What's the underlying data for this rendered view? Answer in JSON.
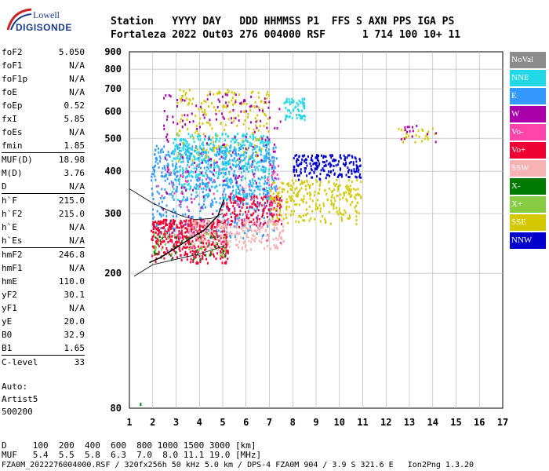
{
  "logo": {
    "line1": "Lowell",
    "line2": "DIGISONDE"
  },
  "header": {
    "row1": "Station   YYYY DAY   DDD HHMMSS P1  FFS S AXN PPS IGA PS",
    "row2": "Fortaleza 2022 Out03 276 004000 RSF      1 714 100 10+ 11"
  },
  "params": [
    {
      "name": "foF2",
      "value": "5.050",
      "sep": false
    },
    {
      "name": "foF1",
      "value": "N/A",
      "sep": false
    },
    {
      "name": "foF1p",
      "value": "N/A",
      "sep": false
    },
    {
      "name": "foE",
      "value": "N/A",
      "sep": false
    },
    {
      "name": "foEp",
      "value": "0.52",
      "sep": false
    },
    {
      "name": "fxI",
      "value": "5.85",
      "sep": false
    },
    {
      "name": "foEs",
      "value": "N/A",
      "sep": false
    },
    {
      "name": "fmin",
      "value": "1.85",
      "sep": false
    },
    {
      "name": "MUF(D)",
      "value": "18.98",
      "sep": true
    },
    {
      "name": "M(D)",
      "value": "3.76",
      "sep": false
    },
    {
      "name": "D",
      "value": "N/A",
      "sep": false
    },
    {
      "name": "h`F",
      "value": "215.0",
      "sep": true
    },
    {
      "name": "h`F2",
      "value": "215.0",
      "sep": false
    },
    {
      "name": "h`E",
      "value": "N/A",
      "sep": false
    },
    {
      "name": "h`Es",
      "value": "N/A",
      "sep": false
    },
    {
      "name": "hmF2",
      "value": "246.8",
      "sep": true
    },
    {
      "name": "hmF1",
      "value": "N/A",
      "sep": false
    },
    {
      "name": "hmE",
      "value": "110.0",
      "sep": false
    },
    {
      "name": "yF2",
      "value": "30.1",
      "sep": false
    },
    {
      "name": "yF1",
      "value": "N/A",
      "sep": false
    },
    {
      "name": "yE",
      "value": "20.0",
      "sep": false
    },
    {
      "name": "B0",
      "value": "32.9",
      "sep": false
    },
    {
      "name": "B1",
      "value": "1.65",
      "sep": false
    },
    {
      "name": "C-level",
      "value": "33",
      "sep": true
    }
  ],
  "auto": [
    "Auto:",
    "Artist5",
    "500200"
  ],
  "legend": [
    {
      "label": "NoVal",
      "color": "#8c8c8c"
    },
    {
      "label": "NNE",
      "color": "#22d8e6"
    },
    {
      "label": "E",
      "color": "#3399ff"
    },
    {
      "label": "W",
      "color": "#aa00aa"
    },
    {
      "label": "Vo-",
      "color": "#ff44aa"
    },
    {
      "label": "Vo+",
      "color": "#ee0033"
    },
    {
      "label": "SSW",
      "color": "#f7b3b3"
    },
    {
      "label": "X-",
      "color": "#007a00"
    },
    {
      "label": "X+",
      "color": "#88cc44"
    },
    {
      "label": "SSE",
      "color": "#d4c800"
    },
    {
      "label": "NNW",
      "color": "#0000cc"
    }
  ],
  "footer": {
    "line1": "D     100  200  400  600  800 1000 1500 3000 [km]",
    "line2": "MUF   5.4  5.5  5.8  6.3  7.0  8.0 11.1 19.0 [MHz]",
    "line3": "FZA0M_2022276004000.RSF / 320fx256h 50 kHz 5.0 km / DPS-4 FZA0M 904 / 3.9 S 321.6 E   Ion2Png 1.3.20"
  },
  "chart_data": {
    "type": "scatter",
    "xlim": [
      1,
      17
    ],
    "ylim": [
      80,
      900
    ],
    "y_scale": "log",
    "xticks": [
      1,
      2,
      3,
      4,
      5,
      6,
      7,
      8,
      9,
      10,
      11,
      12,
      13,
      14,
      15,
      16,
      17
    ],
    "yticks": [
      80,
      200,
      300,
      400,
      500,
      600,
      700,
      800,
      900
    ],
    "grid": true,
    "legend_position": "right",
    "clusters": [
      {
        "series": "E",
        "fx": [
          1.9,
          7.3
        ],
        "hy": [
          255,
          480
        ],
        "n": 700
      },
      {
        "series": "NNE",
        "fx": [
          2.8,
          7.0
        ],
        "hy": [
          330,
          520
        ],
        "n": 420
      },
      {
        "series": "NNE",
        "fx": [
          7.6,
          8.5
        ],
        "hy": [
          570,
          660
        ],
        "n": 60
      },
      {
        "series": "Vo+",
        "fx": [
          1.9,
          5.2
        ],
        "hy": [
          215,
          290
        ],
        "n": 450
      },
      {
        "series": "Vo+",
        "fx": [
          5.0,
          7.5
        ],
        "hy": [
          275,
          340
        ],
        "n": 160
      },
      {
        "series": "SSW",
        "fx": [
          3.5,
          7.6
        ],
        "hy": [
          235,
          290
        ],
        "n": 260
      },
      {
        "series": "SSE",
        "fx": [
          7.0,
          10.9
        ],
        "hy": [
          280,
          380
        ],
        "n": 260
      },
      {
        "series": "SSE",
        "fx": [
          3.0,
          7.0
        ],
        "hy": [
          430,
          700
        ],
        "n": 180
      },
      {
        "series": "W",
        "fx": [
          2.4,
          7.5
        ],
        "hy": [
          260,
          680
        ],
        "n": 180
      },
      {
        "series": "NNW",
        "fx": [
          8.0,
          10.9
        ],
        "hy": [
          380,
          450
        ],
        "n": 200
      },
      {
        "series": "Vo-",
        "fx": [
          2.0,
          7.5
        ],
        "hy": [
          230,
          420
        ],
        "n": 80
      },
      {
        "series": "X-",
        "fx": [
          2.0,
          5.2
        ],
        "hy": [
          220,
          260
        ],
        "n": 40
      },
      {
        "series": "X+",
        "fx": [
          2.0,
          5.2
        ],
        "hy": [
          225,
          265
        ],
        "n": 30
      },
      {
        "series": "SSE",
        "fx": [
          12.5,
          14.2
        ],
        "hy": [
          490,
          540
        ],
        "n": 25
      },
      {
        "series": "W",
        "fx": [
          12.6,
          14.2
        ],
        "hy": [
          490,
          550
        ],
        "n": 15
      }
    ],
    "traces": {
      "profile": {
        "x": [
          1.85,
          2.3,
          3.0,
          3.6,
          4.2,
          4.8,
          5.05
        ],
        "y": [
          215,
          222,
          238,
          253,
          268,
          296,
          330
        ]
      },
      "virtual_low": {
        "x": [
          1.2,
          2.0,
          3.0,
          4.0,
          5.0
        ],
        "y": [
          196,
          212,
          220,
          228,
          240
        ]
      },
      "virtual_high": {
        "x": [
          1.0,
          1.5,
          2.0,
          2.6,
          3.2,
          3.8,
          4.5,
          5.0
        ],
        "y": [
          355,
          338,
          322,
          308,
          296,
          288,
          290,
          300
        ]
      }
    }
  }
}
